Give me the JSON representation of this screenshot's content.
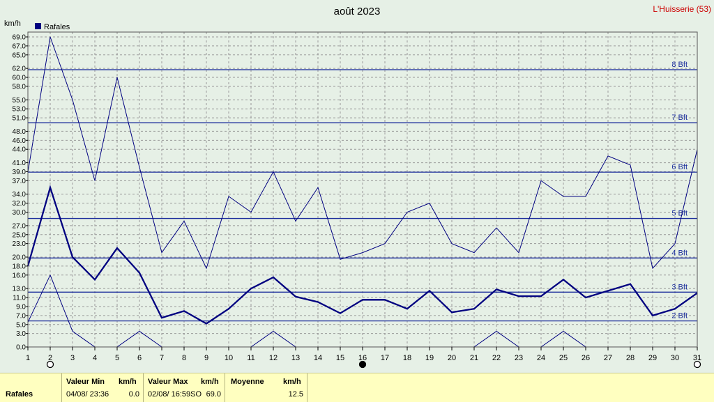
{
  "chart_data": {
    "type": "line",
    "title": "août 2023",
    "location": "L'Huisserie (53)",
    "ylabel": "km/h",
    "ylim": [
      0,
      69
    ],
    "y_ticks": [
      "0.0",
      "3.0",
      "5.0",
      "7.0",
      "9.0",
      "11.0",
      "13.0",
      "16.0",
      "18.0",
      "20.0",
      "23.0",
      "25.0",
      "27.0",
      "30.0",
      "32.0",
      "34.0",
      "37.0",
      "39.0",
      "41.0",
      "44.0",
      "46.0",
      "48.0",
      "51.0",
      "53.0",
      "55.0",
      "58.0",
      "60.0",
      "62.0",
      "65.0",
      "67.0",
      "69.0"
    ],
    "x": [
      1,
      2,
      3,
      4,
      5,
      6,
      7,
      8,
      9,
      10,
      11,
      12,
      13,
      14,
      15,
      16,
      17,
      18,
      19,
      20,
      21,
      22,
      23,
      24,
      25,
      26,
      27,
      28,
      29,
      30,
      31
    ],
    "x_ticks": [
      "1",
      "2",
      "3",
      "4",
      "5",
      "6",
      "7",
      "8",
      "9",
      "10",
      "11",
      "12",
      "13",
      "14",
      "15",
      "16",
      "17",
      "18",
      "19",
      "20",
      "21",
      "22",
      "23",
      "24",
      "25",
      "26",
      "27",
      "28",
      "29",
      "30",
      "31"
    ],
    "legend": "Rafales",
    "legend_position": "top-left",
    "grid": true,
    "beaufort": [
      {
        "label": "2 Bft",
        "value": 5.8
      },
      {
        "label": "3 Bft",
        "value": 12.2
      },
      {
        "label": "4 Bft",
        "value": 19.8
      },
      {
        "label": "5 Bft",
        "value": 28.6
      },
      {
        "label": "6 Bft",
        "value": 38.9
      },
      {
        "label": "7 Bft",
        "value": 49.9
      },
      {
        "label": "8 Bft",
        "value": 61.7
      }
    ],
    "series": [
      {
        "role": "max",
        "values": [
          38.9,
          69.0,
          55.0,
          37.0,
          60.0,
          40.0,
          21.0,
          28.0,
          17.5,
          33.5,
          30.0,
          39.0,
          28.0,
          35.5,
          19.5,
          21.0,
          23.0,
          30.0,
          32.0,
          23.0,
          21.0,
          26.5,
          21.0,
          37.0,
          33.5,
          33.5,
          42.5,
          40.5,
          17.5,
          23.0,
          44.0
        ]
      },
      {
        "role": "mean",
        "values": [
          18.0,
          35.5,
          20.0,
          15.0,
          22.0,
          16.5,
          6.5,
          8.0,
          5.2,
          8.5,
          13.0,
          15.5,
          11.2,
          10.0,
          7.5,
          10.5,
          10.5,
          8.5,
          12.5,
          7.7,
          8.5,
          12.8,
          11.3,
          11.3,
          15.0,
          11.0,
          12.5,
          14.0,
          7.0,
          8.5,
          12.0
        ]
      },
      {
        "role": "min",
        "values": [
          5.5,
          16.0,
          3.5,
          0.0,
          0.0,
          3.5,
          0.0,
          null,
          null,
          null,
          0.0,
          3.5,
          0.0,
          null,
          null,
          null,
          null,
          null,
          null,
          null,
          0.0,
          3.5,
          0.0,
          0.0,
          3.5,
          0.0,
          null,
          null,
          null,
          null,
          null
        ]
      }
    ],
    "moon_markers": [
      {
        "x": 2,
        "phase": "full"
      },
      {
        "x": 16,
        "phase": "new"
      },
      {
        "x": 31,
        "phase": "full"
      }
    ],
    "colors": {
      "plot_bg": "#e6f0e6",
      "line": "#000080",
      "beaufort": "#1c2e9c",
      "title": "#000000",
      "location": "#cc0000",
      "grid": "#999999"
    }
  },
  "footer": {
    "row_label": "Rafales",
    "min_header": "Valeur Min",
    "min_unit": "km/h",
    "min_time": "04/08/  23:36",
    "min_value": "0.0",
    "max_header": "Valeur Max",
    "max_unit": "km/h",
    "max_time": "02/08/  16:59SO",
    "max_value": "69.0",
    "mean_header": "Moyenne",
    "mean_unit": "km/h",
    "mean_value": "12.5"
  }
}
